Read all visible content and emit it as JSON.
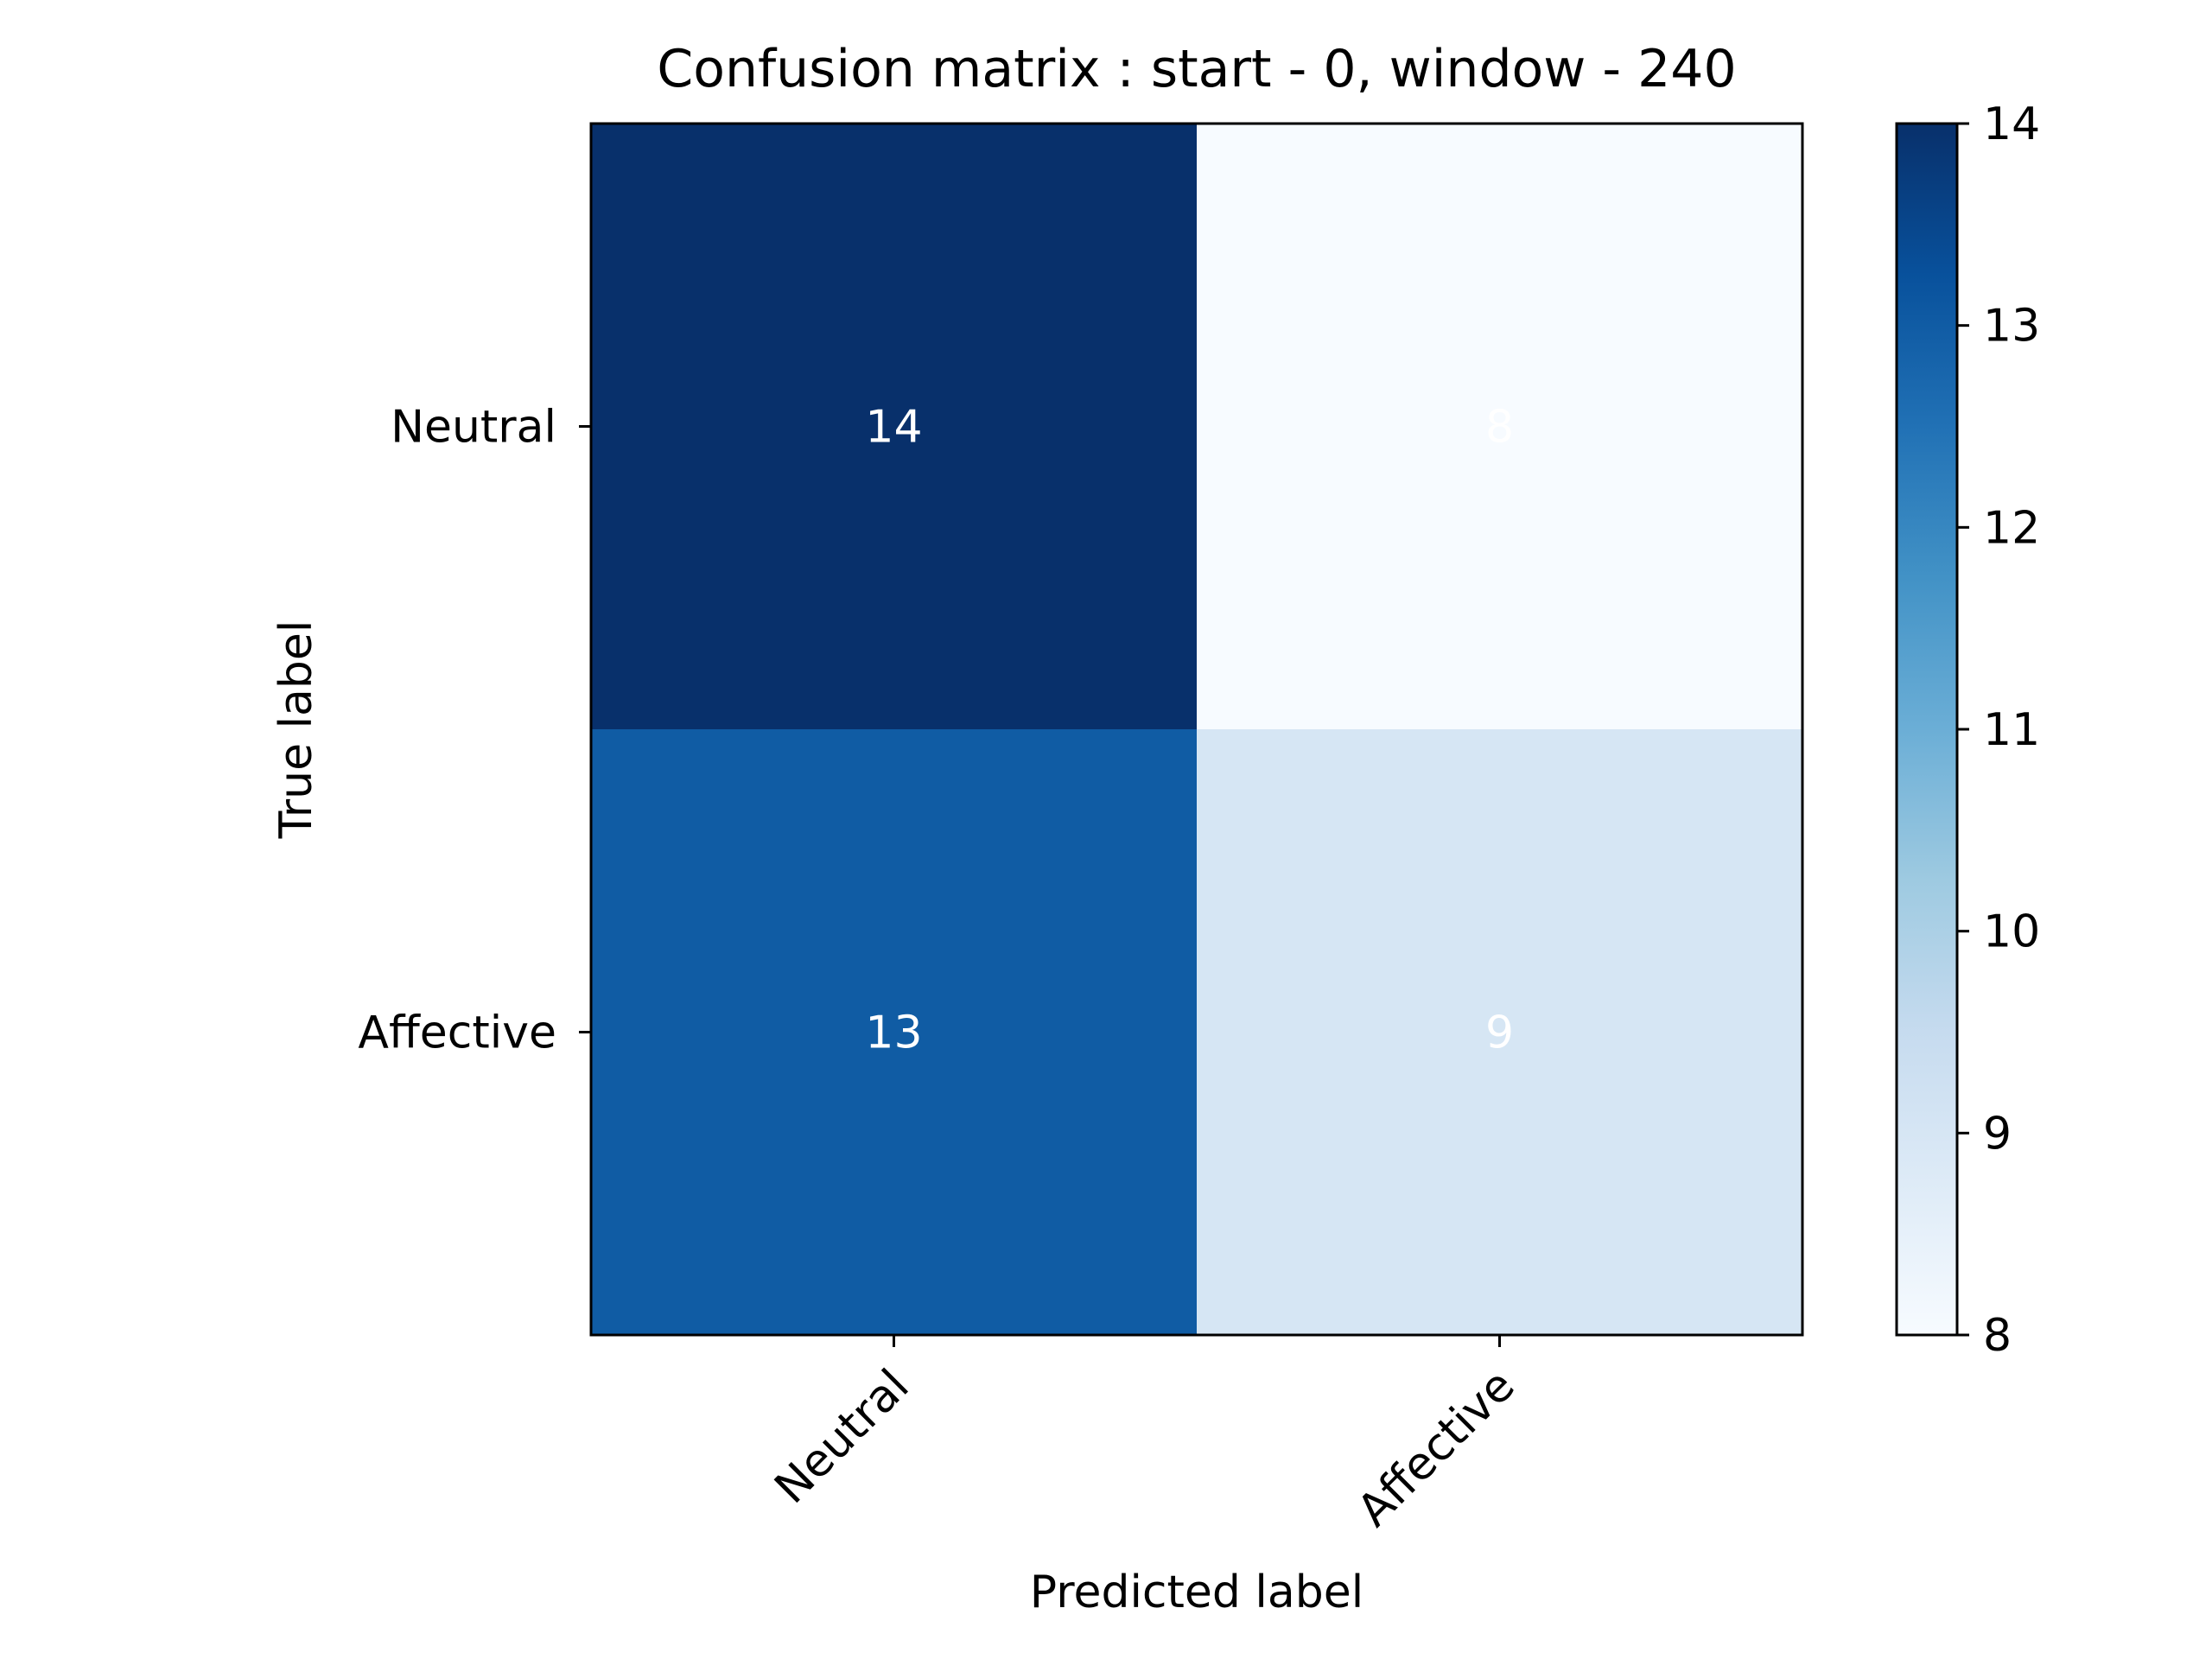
{
  "chart_data": {
    "type": "heatmap",
    "title": "Confusion matrix : start - 0, window - 240",
    "xlabel": "Predicted label",
    "ylabel": "True label",
    "x_categories": [
      "Neutral",
      "Affective"
    ],
    "y_categories": [
      "Neutral",
      "Affective"
    ],
    "values": [
      [
        14,
        8
      ],
      [
        13,
        9
      ]
    ],
    "cell_labels": [
      [
        "14",
        "8"
      ],
      [
        "13",
        "9"
      ]
    ],
    "colorbar": {
      "min": 8,
      "max": 14,
      "ticks": [
        8,
        9,
        10,
        11,
        12,
        13,
        14
      ],
      "colormap": "Blues"
    },
    "cell_text_color": "#ffffff"
  }
}
